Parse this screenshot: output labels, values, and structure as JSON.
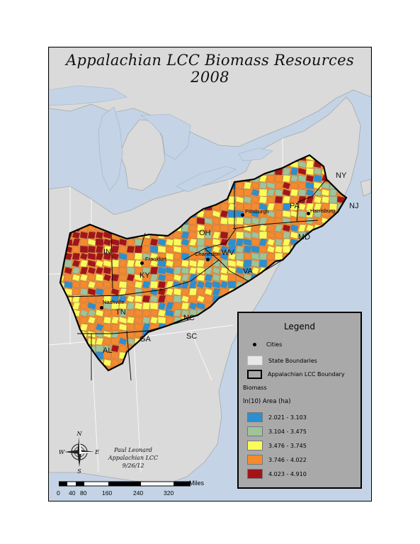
{
  "title": "Appalachian LCC Biomass Resources 2008",
  "state_labels": [
    "NY",
    "PA",
    "NJ",
    "MD",
    "OH",
    "WV",
    "IN",
    "KY",
    "VA",
    "TN",
    "NC",
    "SC",
    "GA",
    "AL"
  ],
  "cities": [
    "Pittsburgh",
    "Harrisburg",
    "Frankfort",
    "Charleston",
    "Nashville"
  ],
  "legend": {
    "title": "Legend",
    "cities_label": "Cities",
    "state_boundaries_label": "State Boundaries",
    "lcc_boundary_label": "Appalachian LCC Boundary",
    "biomass_label": "Biomass",
    "units_label": "ln(10) Area (ha)",
    "classes": [
      {
        "range": "2.021 - 3.103",
        "color": "#2c8fcf"
      },
      {
        "range": "3.104 - 3.475",
        "color": "#9fc49a"
      },
      {
        "range": "3.476 - 3.745",
        "color": "#fbfb5a"
      },
      {
        "range": "3.746 - 4.022",
        "color": "#f58a2e"
      },
      {
        "range": "4.023 - 4.910",
        "color": "#a31418"
      }
    ]
  },
  "compass": {
    "n": "N",
    "e": "E",
    "s": "S",
    "w": "W"
  },
  "author": {
    "name": "Paul Leonard",
    "org": "Appalachian LCC",
    "date": "9/26/12"
  },
  "scale": {
    "unit": "Miles",
    "ticks": [
      "0",
      "40",
      "80",
      "160",
      "240",
      "320"
    ]
  },
  "colors": {
    "water": "#c4d4e6",
    "land": "#dadada",
    "border": "#000000"
  }
}
